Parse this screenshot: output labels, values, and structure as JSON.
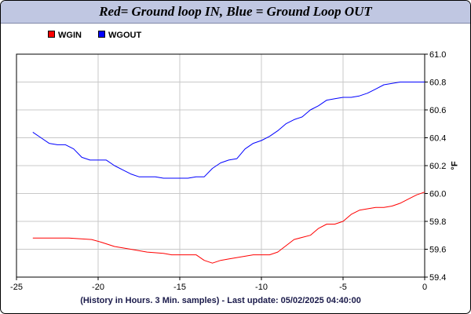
{
  "title": "Red= Ground loop IN, Blue = Ground Loop OUT",
  "footer": "(History in Hours. 3 Min. samples) - Last update: 05/02/2025 04:40:00",
  "chart_data": {
    "type": "line",
    "title": "Red= Ground loop IN, Blue = Ground Loop OUT",
    "xlabel": "(History in Hours. 3 Min. samples) - Last update: 05/02/2025 04:40:00",
    "ylabel": "°F",
    "xlim": [
      -25,
      0
    ],
    "ylim": [
      59.4,
      61.0
    ],
    "x_ticks": [
      -25,
      -20,
      -15,
      -10,
      -5,
      0
    ],
    "y_ticks": [
      59.4,
      59.6,
      59.8,
      60.0,
      60.2,
      60.4,
      60.6,
      60.8,
      61.0
    ],
    "x_tick_labels": [
      "-25",
      "-20",
      "-15",
      "-10",
      "-5",
      "0"
    ],
    "y_tick_labels": [
      "59.4",
      "59.6",
      "59.8",
      "60.0",
      "60.2",
      "60.4",
      "60.6",
      "60.8",
      "61.0"
    ],
    "grid": true,
    "legend": "top-left",
    "series": [
      {
        "name": "WGIN",
        "color": "#ff0000",
        "x": [
          -24,
          -22.3,
          -21.8,
          -20.4,
          -19.8,
          -19.0,
          -18.0,
          -17.0,
          -16.0,
          -15.5,
          -15.0,
          -14.0,
          -13.5,
          -13.0,
          -12.5,
          -12.0,
          -11.0,
          -10.5,
          -10.0,
          -9.5,
          -9.0,
          -8.0,
          -7.0,
          -6.5,
          -6.0,
          -5.5,
          -5.0,
          -4.5,
          -4.0,
          -3.0,
          -2.5,
          -2.0,
          -1.5,
          -1.0,
          -0.5,
          0
        ],
        "y": [
          59.68,
          59.68,
          59.68,
          59.67,
          59.65,
          59.62,
          59.6,
          59.58,
          59.57,
          59.56,
          59.56,
          59.56,
          59.52,
          59.5,
          59.52,
          59.53,
          59.55,
          59.56,
          59.56,
          59.56,
          59.58,
          59.67,
          59.7,
          59.75,
          59.78,
          59.78,
          59.8,
          59.85,
          59.88,
          59.9,
          59.9,
          59.91,
          59.93,
          59.96,
          59.99,
          60.01
        ]
      },
      {
        "name": "WGOUT",
        "color": "#0000ff",
        "x": [
          -24,
          -23.5,
          -23,
          -22.5,
          -22,
          -21.5,
          -21,
          -20.5,
          -20,
          -19.5,
          -19,
          -18.5,
          -18,
          -17.5,
          -17,
          -16.5,
          -16,
          -15.5,
          -15,
          -14.5,
          -14,
          -13.5,
          -13,
          -12.5,
          -12,
          -11.5,
          -11,
          -10.5,
          -10,
          -9.5,
          -9,
          -8.5,
          -8,
          -7.5,
          -7,
          -6.5,
          -6,
          -5.5,
          -5,
          -4.5,
          -4,
          -3.5,
          -3,
          -2.5,
          -2,
          -1.5,
          -1,
          -0.5,
          0
        ],
        "y": [
          60.44,
          60.4,
          60.36,
          60.35,
          60.35,
          60.32,
          60.26,
          60.24,
          60.24,
          60.24,
          60.2,
          60.17,
          60.14,
          60.12,
          60.12,
          60.12,
          60.11,
          60.11,
          60.11,
          60.11,
          60.12,
          60.12,
          60.18,
          60.22,
          60.24,
          60.25,
          60.32,
          60.36,
          60.38,
          60.41,
          60.45,
          60.5,
          60.53,
          60.55,
          60.6,
          60.63,
          60.67,
          60.68,
          60.69,
          60.69,
          60.7,
          60.72,
          60.75,
          60.78,
          60.79,
          60.8,
          60.8,
          60.8,
          60.8
        ]
      }
    ]
  }
}
